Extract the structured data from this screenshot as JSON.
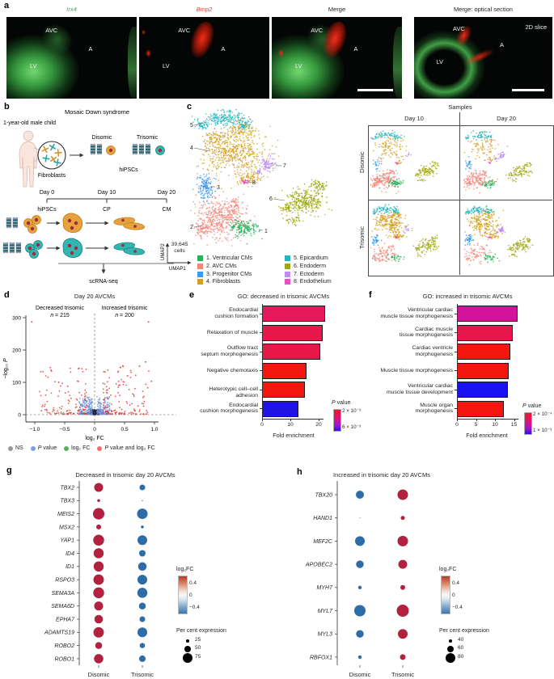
{
  "panel_labels": {
    "a": "a",
    "b": "b",
    "c": "c",
    "d": "d",
    "e": "e",
    "f": "f",
    "g": "g",
    "h": "h"
  },
  "panel_a": {
    "images": [
      {
        "title": "Irx4",
        "title_color": "#3db54a",
        "avc": "AVC",
        "a": "A",
        "lv": "LV"
      },
      {
        "title": "Bmp2",
        "title_color": "#e8403b",
        "avc": "AVC",
        "a": "A",
        "lv": "LV"
      },
      {
        "title": "Merge",
        "title_color": "#231f20",
        "avc": "AVC",
        "a": "A",
        "lv": "LV"
      },
      {
        "title": "Merge: optical section",
        "title_color": "#231f20",
        "avc": "AVC",
        "a": "A",
        "lv": "LV",
        "corner": "2D slice"
      }
    ]
  },
  "panel_b": {
    "title": "Mosaic Down syndrome",
    "subject": "1-year-old male child",
    "fibroblasts_label": "Fibroblasts",
    "disomic_label": "Disomic",
    "trisomic_label": "Trisomic",
    "hipscs_label": "hiPSCs",
    "timeline": {
      "day0": "Day 0",
      "day10": "Day 10",
      "day20": "Day 20",
      "stage0": "hiPSCs",
      "stage1": "CP",
      "stage2": "CM"
    },
    "scrnaseq_label": "scRNA-seq",
    "disomic_color": "#e6a23c",
    "trisomic_color": "#35b5b1"
  },
  "chart_data": {
    "umap": {
      "type": "scatter",
      "cell_count": "39,645",
      "cell_count_unit": "cells",
      "xlabel": "UMAP1",
      "ylabel": "UMAP2",
      "clusters": [
        {
          "id": 1,
          "label": "1. Ventricular CMs",
          "color": "#2bb15d"
        },
        {
          "id": 2,
          "label": "2. AVC CMs",
          "color": "#f4867a"
        },
        {
          "id": 3,
          "label": "3. Progenitor CMs",
          "color": "#3b9af0"
        },
        {
          "id": 4,
          "label": "4. Fibroblasts",
          "color": "#d5a021"
        },
        {
          "id": 5,
          "label": "5. Epicardium",
          "color": "#27b6bd"
        },
        {
          "id": 6,
          "label": "6. Endoderm",
          "color": "#a0a912"
        },
        {
          "id": 7,
          "label": "7. Ectoderm",
          "color": "#bd8cf5"
        },
        {
          "id": 8,
          "label": "8. Endothelium",
          "color": "#ea4fc5"
        }
      ],
      "samples": {
        "title": "Samples",
        "columns": [
          "Day 10",
          "Day 20"
        ],
        "rows": [
          "Disomic",
          "Trisomic"
        ]
      }
    },
    "volcano": {
      "type": "scatter",
      "title": "Day 20 AVCMs",
      "xlabel": "log₂ FC",
      "ylabel": "−log₁₀ P",
      "xlim": [
        -1.1,
        1.1
      ],
      "ylim": [
        0,
        310
      ],
      "xticks": [
        "−1.0",
        "−0.5",
        "0",
        "0.5",
        "1.0"
      ],
      "xtick_values": [
        -1,
        -0.5,
        0,
        0.5,
        1
      ],
      "yticks": [
        0,
        100,
        200,
        300
      ],
      "decreased_label": "Decreased trisomic",
      "decreased_n": "n = 215",
      "increased_label": "Increased trisomic",
      "increased_n": "n = 200",
      "legend": [
        {
          "label": "NS",
          "color": "#9a9a9a"
        },
        {
          "label": "P value",
          "color": "#7f9fe3"
        },
        {
          "label": "log₂ FC",
          "color": "#57b05c"
        },
        {
          "label": "P value and log₂ FC",
          "color": "#ef6f6f"
        }
      ],
      "point_colors": {
        "ns": "#9a9a9a",
        "p": "#6b93de",
        "fc": "#57b05c",
        "both": "#e2302c",
        "dense": "#23233c"
      },
      "notable_points": [
        {
          "fc": -1.05,
          "p": 287
        },
        {
          "fc": 0.9,
          "p": 287
        },
        {
          "fc": 0.85,
          "p": 163
        },
        {
          "fc": 0.75,
          "p": 150
        },
        {
          "fc": -0.72,
          "p": 135
        },
        {
          "fc": 0.95,
          "p": 103
        },
        {
          "fc": -0.6,
          "p": 100
        },
        {
          "fc": 0.55,
          "p": 120
        },
        {
          "fc": -0.45,
          "p": 88
        },
        {
          "fc": 0.42,
          "p": 92
        }
      ]
    },
    "go_decreased": {
      "type": "bar",
      "title": "GO: decreased in trisomic AVCMs",
      "categories": [
        "Endocardial\ncushion formation",
        "Relaxation of muscle",
        "Outflow tract\nseptum morphogenesis",
        "Negative chemotaxis",
        "Heterotypic cell–cell adhesion",
        "Endocardial\ncushion morphogenesis"
      ],
      "values": [
        22.3,
        21.5,
        20.6,
        15.8,
        15.2,
        12.8
      ],
      "bar_colors": [
        "#e6185c",
        "#e81749",
        "#e81749",
        "#f2160f",
        "#f2160f",
        "#2013e6"
      ],
      "xlabel": "Fold enrichment",
      "xticks": [
        0,
        10,
        20
      ],
      "xlim": [
        0,
        24
      ],
      "legend": {
        "title": "P value",
        "top": "2 × 10⁻³",
        "bottom": "6 × 10⁻³"
      }
    },
    "go_increased": {
      "type": "bar",
      "title": "GO: increased in trisomic AVCMs",
      "categories": [
        "Ventricular cardiac\nmuscle tissue morphogenesis",
        "Cardiac muscle\ntissue morphogenesis",
        "Cardiac ventricle\nmorphogenesis",
        "Muscle tissue morphogenesis",
        "Ventricular cardiac\nmuscle tissue development",
        "Muscle organ\nmorphogenesis"
      ],
      "values": [
        16.0,
        14.6,
        14.1,
        13.7,
        13.4,
        12.4
      ],
      "bar_colors": [
        "#d2149c",
        "#e8174b",
        "#f2160f",
        "#f2160f",
        "#1a13ef",
        "#f2160f"
      ],
      "xlabel": "Fold enrichment",
      "xticks": [
        0,
        5,
        10,
        15
      ],
      "xlim": [
        0,
        17
      ],
      "legend": {
        "title": "P value",
        "top": "2 × 10⁻⁴",
        "bottom": "1 × 10⁻³"
      }
    },
    "dots_decreased": {
      "type": "dotplot",
      "title": "Decreased in trisomic day 20 AVCMs",
      "columns": [
        "Disomic",
        "Trisomic"
      ],
      "column_colors": [
        "#b0223f",
        "#2e6ca8"
      ],
      "genes": [
        "TBX2",
        "TBX3",
        "MEIS2",
        "MSX2",
        "YAP1",
        "ID4",
        "ID1",
        "RSPO3",
        "SEMA3A",
        "SEMA6D",
        "EPHA7",
        "ADAMTS19",
        "ROBO2",
        "ROBO1"
      ],
      "percent_expression": {
        "Disomic": [
          69,
          22,
          88,
          38,
          84,
          78,
          78,
          81,
          84,
          69,
          66,
          81,
          53,
          72
        ],
        "Trisomic": [
          44,
          9,
          81,
          22,
          75,
          50,
          66,
          75,
          78,
          53,
          44,
          75,
          41,
          50
        ]
      },
      "log2fc_legend": {
        "title": "log₂FC",
        "ticks": [
          "0.4",
          "0",
          "−0.4"
        ]
      },
      "size_legend": {
        "title": "Per cent expression",
        "sizes": [
          25,
          50,
          75
        ]
      },
      "size_scale": {
        "pcts": [
          25,
          75
        ],
        "diams": [
          4,
          12
        ]
      }
    },
    "dots_increased": {
      "type": "dotplot",
      "title": "Increased in trisomic day 20 AVCMs",
      "columns": [
        "Disomic",
        "Trisomic"
      ],
      "column_colors": [
        "#2e6ca8",
        "#b0223f"
      ],
      "genes": [
        "TBX20",
        "HAND1",
        "MEF2C",
        "APOBEC2",
        "MYH7",
        "MYL7",
        "MYL3",
        "RBFOX1"
      ],
      "percent_expression": {
        "Disomic": [
          70,
          28,
          80,
          67,
          42,
          90,
          67,
          42
        ],
        "Trisomic": [
          85,
          45,
          85,
          75,
          50,
          95,
          80,
          55
        ]
      },
      "cell_color_overrides": {
        "HAND1": {
          "Disomic": "#bdbdbd"
        }
      },
      "log2fc_legend": {
        "title": "log₂FC",
        "ticks": [
          "0.4",
          "0",
          "−0.4"
        ]
      },
      "size_legend": {
        "title": "Per cent expression",
        "sizes": [
          40,
          60,
          80
        ]
      },
      "size_scale": {
        "pcts": [
          40,
          80
        ],
        "diams": [
          4,
          12
        ]
      }
    }
  }
}
